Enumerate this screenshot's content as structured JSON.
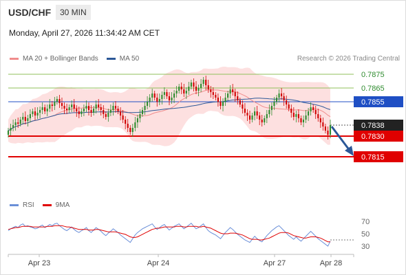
{
  "header": {
    "symbol": "USD/CHF",
    "timeframe": "30 MIN",
    "datetime": "Monday, April 27, 2026 11:34:42 AM CET"
  },
  "legend": {
    "items": [
      {
        "label": "MA 20 + Bollinger Bands",
        "color": "#f08c8c"
      },
      {
        "label": "MA 50",
        "color": "#2b5797"
      }
    ],
    "credit": "Research © 2026 Trading Central"
  },
  "rsi_legend": {
    "items": [
      {
        "label": "RSI",
        "color": "#6a8fd8"
      },
      {
        "label": "9MA",
        "color": "#e00000"
      }
    ]
  },
  "colors": {
    "up": "#2e8b2e",
    "down": "#d00000",
    "support": "#e00000",
    "pivot": "#1f4fc4",
    "resistance": "#8fbf5a",
    "last": "#222222",
    "arrow": "#2b5797",
    "band": "#fde0e0"
  },
  "chart_data": [
    {
      "type": "candlestick",
      "symbol": "USD/CHF",
      "ylim": [
        0.78,
        0.7885
      ],
      "x_ticks": [
        "Apr 23",
        "Apr 24",
        "Apr 27",
        "Apr 28"
      ],
      "levels": [
        {
          "value": 0.7875,
          "label": "0.7875",
          "kind": "resistance"
        },
        {
          "value": 0.7865,
          "label": "0.7865",
          "kind": "resistance"
        },
        {
          "value": 0.7855,
          "label": "0.7855",
          "kind": "pivot"
        },
        {
          "value": 0.7838,
          "label": "0.7838",
          "kind": "last"
        },
        {
          "value": 0.783,
          "label": "0.7830",
          "kind": "support"
        },
        {
          "value": 0.7815,
          "label": "0.7815",
          "kind": "support"
        }
      ],
      "close_path": [
        0.7834,
        0.7836,
        0.7838,
        0.784,
        0.7839,
        0.7842,
        0.7844,
        0.7841,
        0.7843,
        0.7846,
        0.7848,
        0.7845,
        0.7847,
        0.7849,
        0.7851,
        0.7848,
        0.785,
        0.7853,
        0.7852,
        0.7855,
        0.7857,
        0.7854,
        0.7852,
        0.785,
        0.7849,
        0.7851,
        0.7853,
        0.785,
        0.7848,
        0.7846,
        0.7848,
        0.785,
        0.7852,
        0.7849,
        0.7847,
        0.785,
        0.7853,
        0.7851,
        0.7849,
        0.7846,
        0.7844,
        0.7847,
        0.7849,
        0.7852,
        0.785,
        0.7848,
        0.7845,
        0.7842,
        0.7839,
        0.7836,
        0.7833,
        0.7836,
        0.784,
        0.7843,
        0.7846,
        0.7849,
        0.7852,
        0.7855,
        0.7858,
        0.7861,
        0.7858,
        0.7855,
        0.7857,
        0.786,
        0.7862,
        0.7859,
        0.7856,
        0.7858,
        0.7861,
        0.7863,
        0.7866,
        0.7864,
        0.7861,
        0.7863,
        0.7866,
        0.7869,
        0.7866,
        0.7863,
        0.7865,
        0.7868,
        0.7871,
        0.7867,
        0.7864,
        0.7862,
        0.786,
        0.7858,
        0.7855,
        0.7852,
        0.7855,
        0.7858,
        0.7861,
        0.7864,
        0.7862,
        0.7859,
        0.7856,
        0.7853,
        0.785,
        0.7847,
        0.7845,
        0.7842,
        0.7845,
        0.7848,
        0.7845,
        0.7842,
        0.784,
        0.7843,
        0.7846,
        0.7849,
        0.7852,
        0.7855,
        0.7858,
        0.7861,
        0.7859,
        0.7856,
        0.7853,
        0.785,
        0.7847,
        0.7844,
        0.7846,
        0.7843,
        0.784,
        0.7842,
        0.7845,
        0.7848,
        0.7851,
        0.7849,
        0.7846,
        0.7843,
        0.784,
        0.7837,
        0.7834,
        0.7831,
        0.7838
      ]
    },
    {
      "type": "line",
      "series": [
        {
          "name": "RSI"
        },
        {
          "name": "9MA"
        }
      ],
      "ylim": [
        20,
        80
      ],
      "y_ticks": [
        "70",
        "50",
        "30"
      ],
      "rsi": [
        55,
        58,
        60,
        62,
        60,
        64,
        66,
        62,
        63,
        61,
        60,
        58,
        59,
        62,
        64,
        60,
        62,
        65,
        63,
        66,
        67,
        63,
        60,
        57,
        55,
        58,
        61,
        57,
        54,
        52,
        55,
        57,
        60,
        55,
        52,
        56,
        60,
        57,
        54,
        50,
        47,
        51,
        54,
        58,
        55,
        52,
        48,
        45,
        42,
        39,
        36,
        42,
        48,
        52,
        55,
        58,
        60,
        62,
        64,
        66,
        61,
        57,
        60,
        63,
        65,
        60,
        56,
        59,
        62,
        64,
        66,
        62,
        58,
        61,
        64,
        67,
        62,
        58,
        60,
        63,
        66,
        60,
        55,
        52,
        50,
        48,
        45,
        42,
        47,
        52,
        56,
        60,
        57,
        53,
        49,
        46,
        43,
        40,
        38,
        36,
        41,
        46,
        42,
        39,
        37,
        42,
        47,
        51,
        55,
        58,
        61,
        63,
        59,
        55,
        51,
        47,
        44,
        41,
        45,
        41,
        38,
        42,
        46,
        50,
        54,
        50,
        46,
        42,
        39,
        36,
        33,
        30,
        38
      ],
      "ma9": [
        57,
        58,
        59,
        60,
        60,
        61,
        62,
        62,
        62,
        62,
        61,
        61,
        61,
        61,
        61,
        61,
        62,
        62,
        62,
        63,
        63,
        63,
        63,
        62,
        61,
        61,
        60,
        59,
        58,
        57,
        57,
        57,
        57,
        56,
        56,
        56,
        57,
        57,
        56,
        55,
        54,
        53,
        53,
        53,
        53,
        52,
        51,
        50,
        49,
        47,
        45,
        44,
        44,
        45,
        47,
        49,
        51,
        53,
        55,
        57,
        58,
        59,
        59,
        60,
        61,
        61,
        61,
        61,
        61,
        62,
        62,
        62,
        61,
        61,
        62,
        62,
        62,
        62,
        61,
        61,
        62,
        61,
        60,
        59,
        57,
        55,
        53,
        51,
        50,
        50,
        50,
        51,
        51,
        51,
        50,
        49,
        48,
        46,
        44,
        42,
        41,
        41,
        41,
        40,
        40,
        41,
        42,
        43,
        45,
        47,
        49,
        51,
        52,
        52,
        52,
        51,
        49,
        47,
        46,
        45,
        44,
        43,
        43,
        44,
        45,
        45,
        45,
        44,
        43,
        41,
        39,
        37,
        37
      ]
    }
  ]
}
